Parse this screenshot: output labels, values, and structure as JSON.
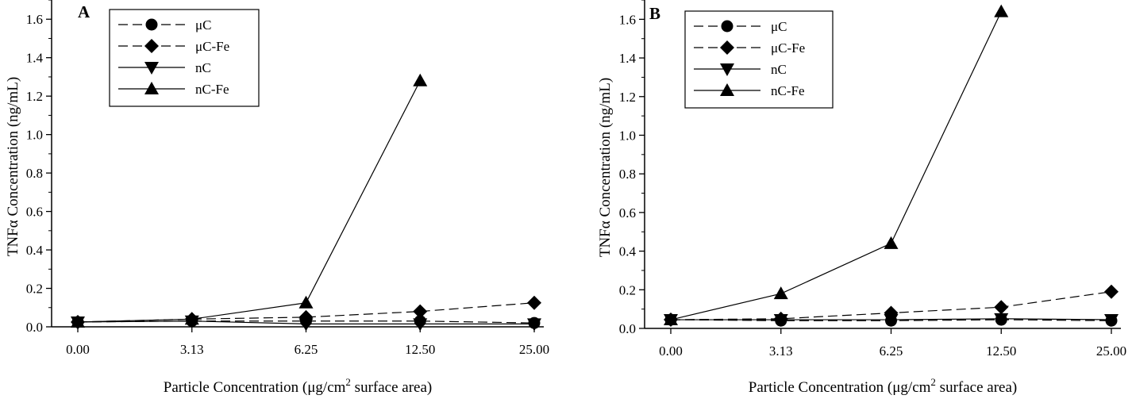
{
  "chart_data": [
    {
      "type": "line",
      "panel_label": "A",
      "xlabel_pre": "Particle Concentration (μg/cm",
      "xlabel_sup": "2",
      "xlabel_post": " surface area)",
      "ylabel": "TNFα Concentration (ng/mL)",
      "categories": [
        "0.00",
        "3.13",
        "6.25",
        "12.50",
        "25.00"
      ],
      "yticks": [
        "0.0",
        "0.2",
        "0.4",
        "0.6",
        "0.8",
        "1.0",
        "1.2",
        "1.4",
        "1.6"
      ],
      "ylim": [
        0,
        1.7
      ],
      "grid": false,
      "legend_position": "top-left",
      "series": [
        {
          "name": "μC",
          "marker": "circle",
          "dash": true,
          "values": [
            0.025,
            0.03,
            0.03,
            0.03,
            0.02
          ]
        },
        {
          "name": "μC-Fe",
          "marker": "diamond",
          "dash": true,
          "values": [
            0.025,
            0.04,
            0.05,
            0.08,
            0.125
          ]
        },
        {
          "name": "nC",
          "marker": "triangle-down",
          "dash": false,
          "values": [
            0.025,
            0.03,
            0.015,
            0.015,
            0.015
          ]
        },
        {
          "name": "nC-Fe",
          "marker": "triangle-up",
          "dash": false,
          "values": [
            0.025,
            0.04,
            0.125,
            1.28,
            null
          ]
        }
      ]
    },
    {
      "type": "line",
      "panel_label": "B",
      "xlabel_pre": "Particle Concentration (μg/cm",
      "xlabel_sup": "2",
      "xlabel_post": " surface area)",
      "ylabel": "TNFα Concentration (ng/mL)",
      "categories": [
        "0.00",
        "3.13",
        "6.25",
        "12.50",
        "25.00"
      ],
      "yticks": [
        "0.0",
        "0.2",
        "0.4",
        "0.6",
        "0.8",
        "1.0",
        "1.2",
        "1.4",
        "1.6"
      ],
      "ylim": [
        0,
        1.7
      ],
      "grid": false,
      "legend_position": "top-left",
      "series": [
        {
          "name": "μC",
          "marker": "circle",
          "dash": true,
          "values": [
            0.045,
            0.04,
            0.04,
            0.045,
            0.04
          ]
        },
        {
          "name": "μC-Fe",
          "marker": "diamond",
          "dash": true,
          "values": [
            0.045,
            0.05,
            0.08,
            0.11,
            0.19
          ]
        },
        {
          "name": "nC",
          "marker": "triangle-down",
          "dash": false,
          "values": [
            0.045,
            0.045,
            0.045,
            0.05,
            0.045
          ]
        },
        {
          "name": "nC-Fe",
          "marker": "triangle-up",
          "dash": false,
          "values": [
            0.045,
            0.18,
            0.44,
            1.64,
            null
          ]
        }
      ]
    }
  ]
}
